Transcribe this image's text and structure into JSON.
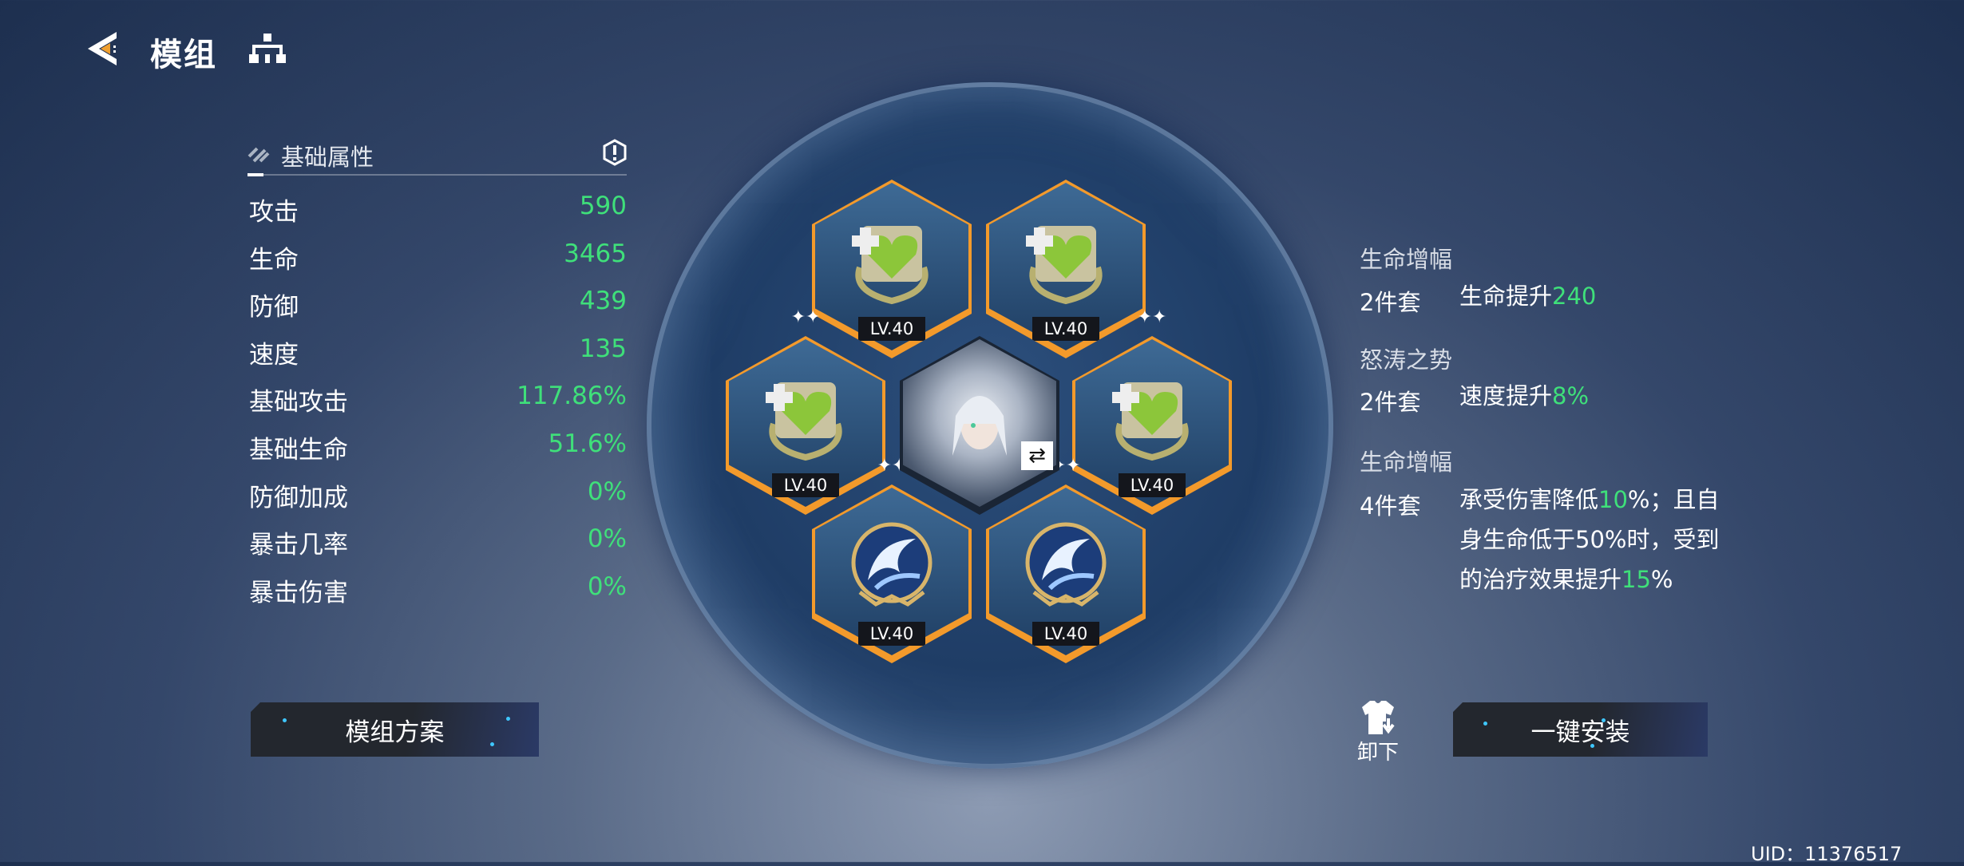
{
  "header": {
    "title": "模组",
    "back_icon": "back-arrow-icon",
    "tree_icon": "hierarchy-icon"
  },
  "stats": {
    "title": "基础属性",
    "info_icon": "info-hex-icon",
    "rows": [
      {
        "label": "攻击",
        "value": "590"
      },
      {
        "label": "生命",
        "value": "3465"
      },
      {
        "label": "防御",
        "value": "439"
      },
      {
        "label": "速度",
        "value": "135"
      },
      {
        "label": "基础攻击",
        "value": "117.86%"
      },
      {
        "label": "基础生命",
        "value": "51.6%"
      },
      {
        "label": "防御加成",
        "value": "0%"
      },
      {
        "label": "暴击几率",
        "value": "0%"
      },
      {
        "label": "暴击伤害",
        "value": "0%"
      }
    ]
  },
  "plan_button": "模组方案",
  "modules": [
    {
      "level": "LV.40",
      "type": "green-heart"
    },
    {
      "level": "LV.40",
      "type": "green-heart"
    },
    {
      "level": "LV.40",
      "type": "green-heart"
    },
    {
      "level": "LV.40",
      "type": "green-heart"
    },
    {
      "level": "LV.40",
      "type": "blue-wave"
    },
    {
      "level": "LV.40",
      "type": "blue-wave"
    }
  ],
  "sets": [
    {
      "name": "生命增幅",
      "count": "2件套",
      "desc": [
        {
          "t": "生命提升"
        },
        {
          "t": "240",
          "g": true
        }
      ]
    },
    {
      "name": "怒涛之势",
      "count": "2件套",
      "desc": [
        {
          "t": "速度提升"
        },
        {
          "t": "8%",
          "g": true
        }
      ]
    },
    {
      "name": "生命增幅",
      "count": "4件套",
      "desc": [
        {
          "t": "承受伤害降低"
        },
        {
          "t": "10",
          "g": true
        },
        {
          "t": "%；且自身生命低于50%时，受到的治疗效果提升"
        },
        {
          "t": "15",
          "g": true
        },
        {
          "t": "%"
        }
      ]
    }
  ],
  "unequip_label": "卸下",
  "install_button": "一键安装",
  "uid": "UID：11376517",
  "colors": {
    "accent_green": "#3fe07a",
    "slot_orange": "#f39a2b"
  }
}
